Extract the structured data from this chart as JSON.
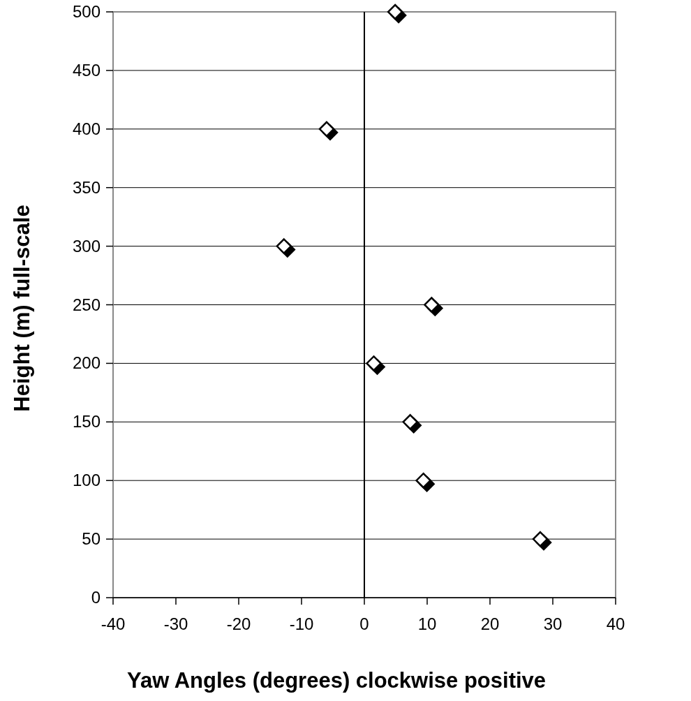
{
  "chart_data": {
    "type": "scatter",
    "xlabel": "Yaw Angles (degrees) clockwise positive",
    "ylabel": "Height (m) full-scale",
    "x": [
      4.9,
      -6.0,
      -12.8,
      10.7,
      1.5,
      7.3,
      9.4,
      28.0
    ],
    "series": [
      {
        "color": "#ffffff",
        "values": [
          500,
          400,
          300,
          250,
          200,
          150,
          100,
          50
        ]
      }
    ],
    "marker": "diamond",
    "xlim": [
      -40,
      40
    ],
    "ylim": [
      0,
      500
    ],
    "xticks": [
      -40,
      -30,
      -20,
      -10,
      0,
      10,
      20,
      30,
      40
    ],
    "yticks": [
      0,
      50,
      100,
      150,
      200,
      250,
      300,
      350,
      400,
      450,
      500
    ],
    "grid": "y",
    "ref_lines": [
      {
        "axis": "x",
        "value": 0,
        "color": "#000000"
      }
    ]
  }
}
